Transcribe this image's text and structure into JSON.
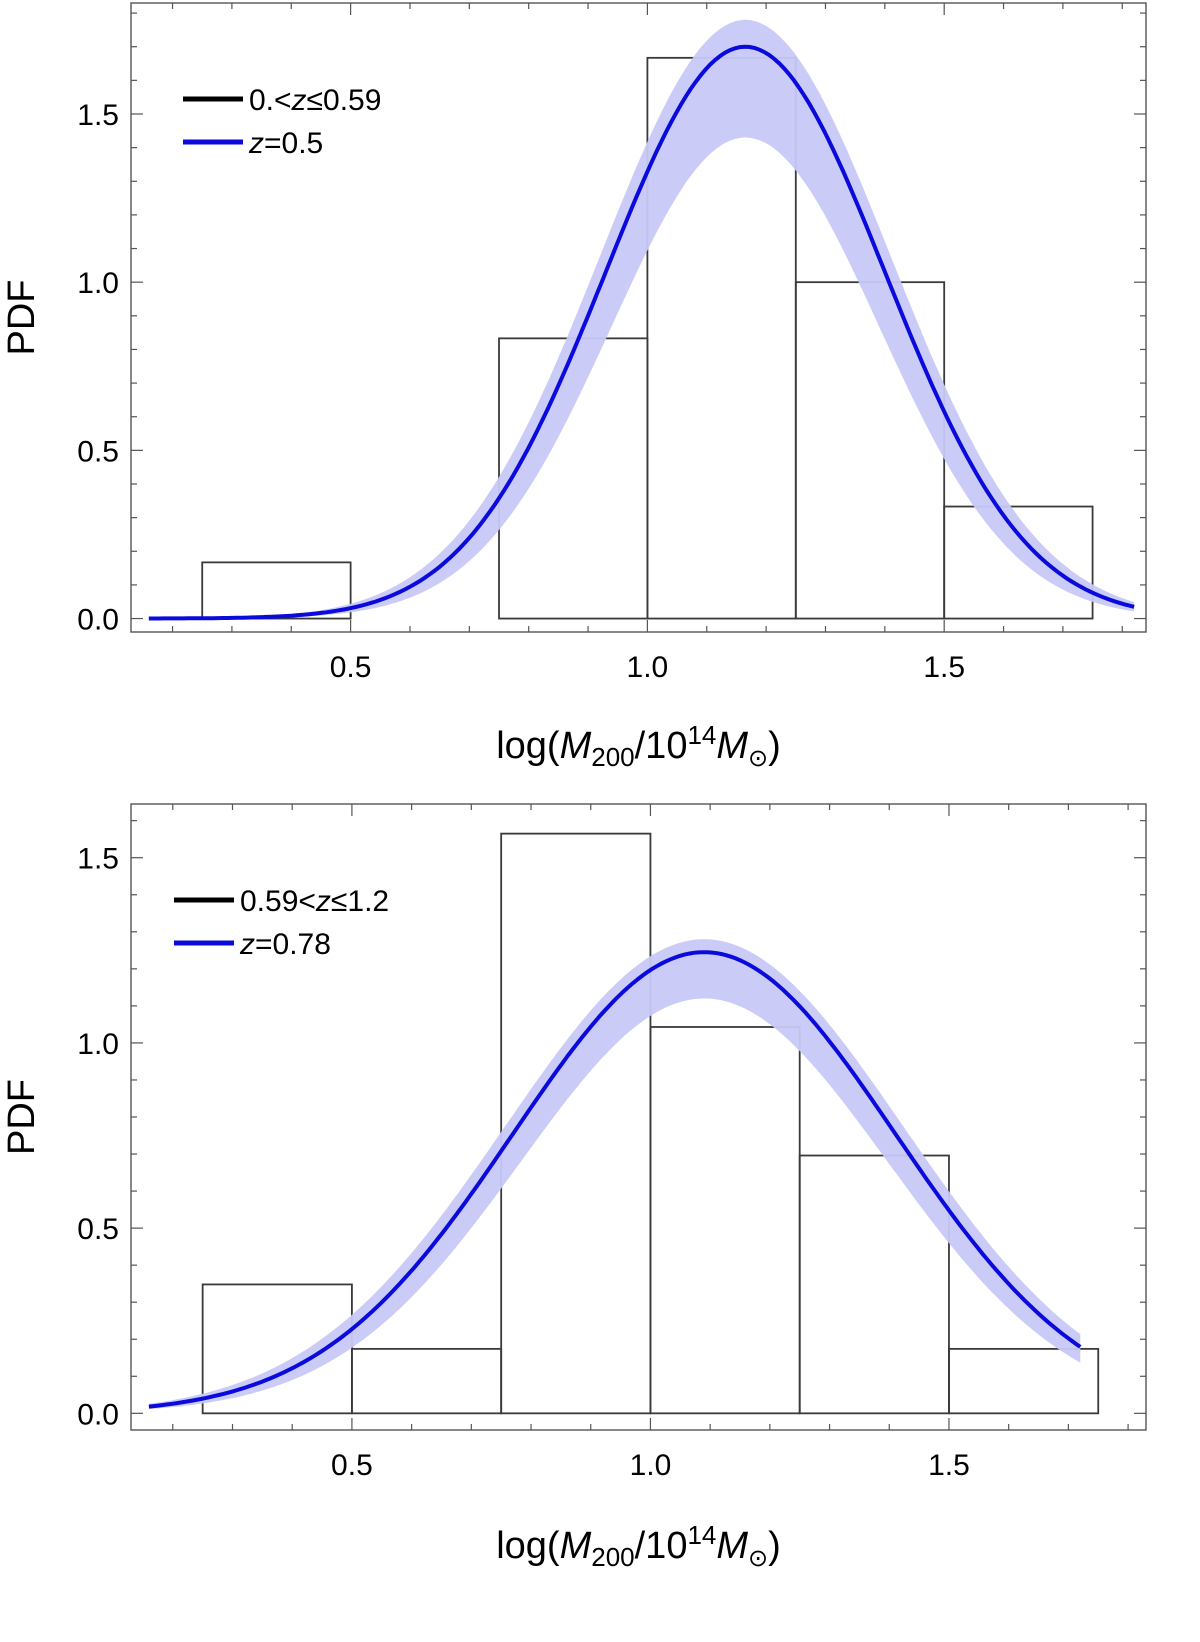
{
  "colors": {
    "histogram": "#3a3a3a",
    "curve": "#0a0adc",
    "band": "#c8c8f8",
    "frame": "#555555"
  },
  "chart_data": [
    {
      "type": "histogram_with_curve",
      "ylabel": "PDF",
      "xlabel": {
        "prefix": "log(",
        "m": "M",
        "sub200": "200",
        "mid": "/10",
        "sup14": "14",
        "msun": "M",
        "sunsym": "⊙",
        "suffix": ")"
      },
      "xlim": [
        0.13,
        1.84
      ],
      "ylim": [
        -0.04,
        1.83
      ],
      "xticks": [
        0.5,
        1.0,
        1.5
      ],
      "xtick_labels": [
        "0.5",
        "1.0",
        "1.5"
      ],
      "yticks": [
        0.0,
        0.5,
        1.0,
        1.5
      ],
      "ytick_labels": [
        "0.0",
        "0.5",
        "1.0",
        "1.5"
      ],
      "bins": [
        {
          "x0": 0.25,
          "x1": 0.5,
          "value": 0.167
        },
        {
          "x0": 0.5,
          "x1": 0.75,
          "value": 0.0
        },
        {
          "x0": 0.75,
          "x1": 1.0,
          "value": 0.833
        },
        {
          "x0": 1.0,
          "x1": 1.25,
          "value": 1.667
        },
        {
          "x0": 1.25,
          "x1": 1.5,
          "value": 1.0
        },
        {
          "x0": 1.5,
          "x1": 1.75,
          "value": 0.333
        }
      ],
      "curve": {
        "mean": 1.165,
        "sigma": 0.235,
        "peak": 1.7,
        "x_start": 0.16,
        "x_end": 1.82
      },
      "band": {
        "upper_peak": 1.78,
        "lower_peak": 1.43,
        "x_start": 0.16,
        "x_end": 1.82
      },
      "legend": [
        {
          "label_pre": "0.<",
          "italic": "z",
          "label_post": "≤0.59",
          "color": "#000000"
        },
        {
          "label_pre": "",
          "italic": "z",
          "label_post": "=0.5",
          "color": "#0a0adc"
        }
      ]
    },
    {
      "type": "histogram_with_curve",
      "ylabel": "PDF",
      "xlabel": {
        "prefix": "log(",
        "m": "M",
        "sub200": "200",
        "mid": "/10",
        "sup14": "14",
        "msun": "M",
        "sunsym": "⊙",
        "suffix": ")"
      },
      "xlim": [
        0.13,
        1.83
      ],
      "ylim": [
        -0.045,
        1.645
      ],
      "xticks": [
        0.5,
        1.0,
        1.5
      ],
      "xtick_labels": [
        "0.5",
        "1.0",
        "1.5"
      ],
      "yticks": [
        0.0,
        0.5,
        1.0,
        1.5
      ],
      "ytick_labels": [
        "0.0",
        "0.5",
        "1.0",
        "1.5"
      ],
      "bins": [
        {
          "x0": 0.25,
          "x1": 0.5,
          "value": 0.348
        },
        {
          "x0": 0.5,
          "x1": 0.75,
          "value": 0.174
        },
        {
          "x0": 0.75,
          "x1": 1.0,
          "value": 1.565
        },
        {
          "x0": 1.0,
          "x1": 1.25,
          "value": 1.043
        },
        {
          "x0": 1.25,
          "x1": 1.5,
          "value": 0.696
        },
        {
          "x0": 1.5,
          "x1": 1.75,
          "value": 0.174
        }
      ],
      "curve": {
        "mean": 1.09,
        "sigma": 0.32,
        "peak": 1.245,
        "x_start": 0.16,
        "x_end": 1.72
      },
      "band": {
        "upper_peak": 1.28,
        "lower_peak": 1.12,
        "x_start": 0.16,
        "x_end": 1.72
      },
      "legend": [
        {
          "label_pre": "0.59<",
          "italic": "z",
          "label_post": "≤1.2",
          "color": "#000000"
        },
        {
          "label_pre": "",
          "italic": "z",
          "label_post": "=0.78",
          "color": "#0a0adc"
        }
      ]
    }
  ]
}
